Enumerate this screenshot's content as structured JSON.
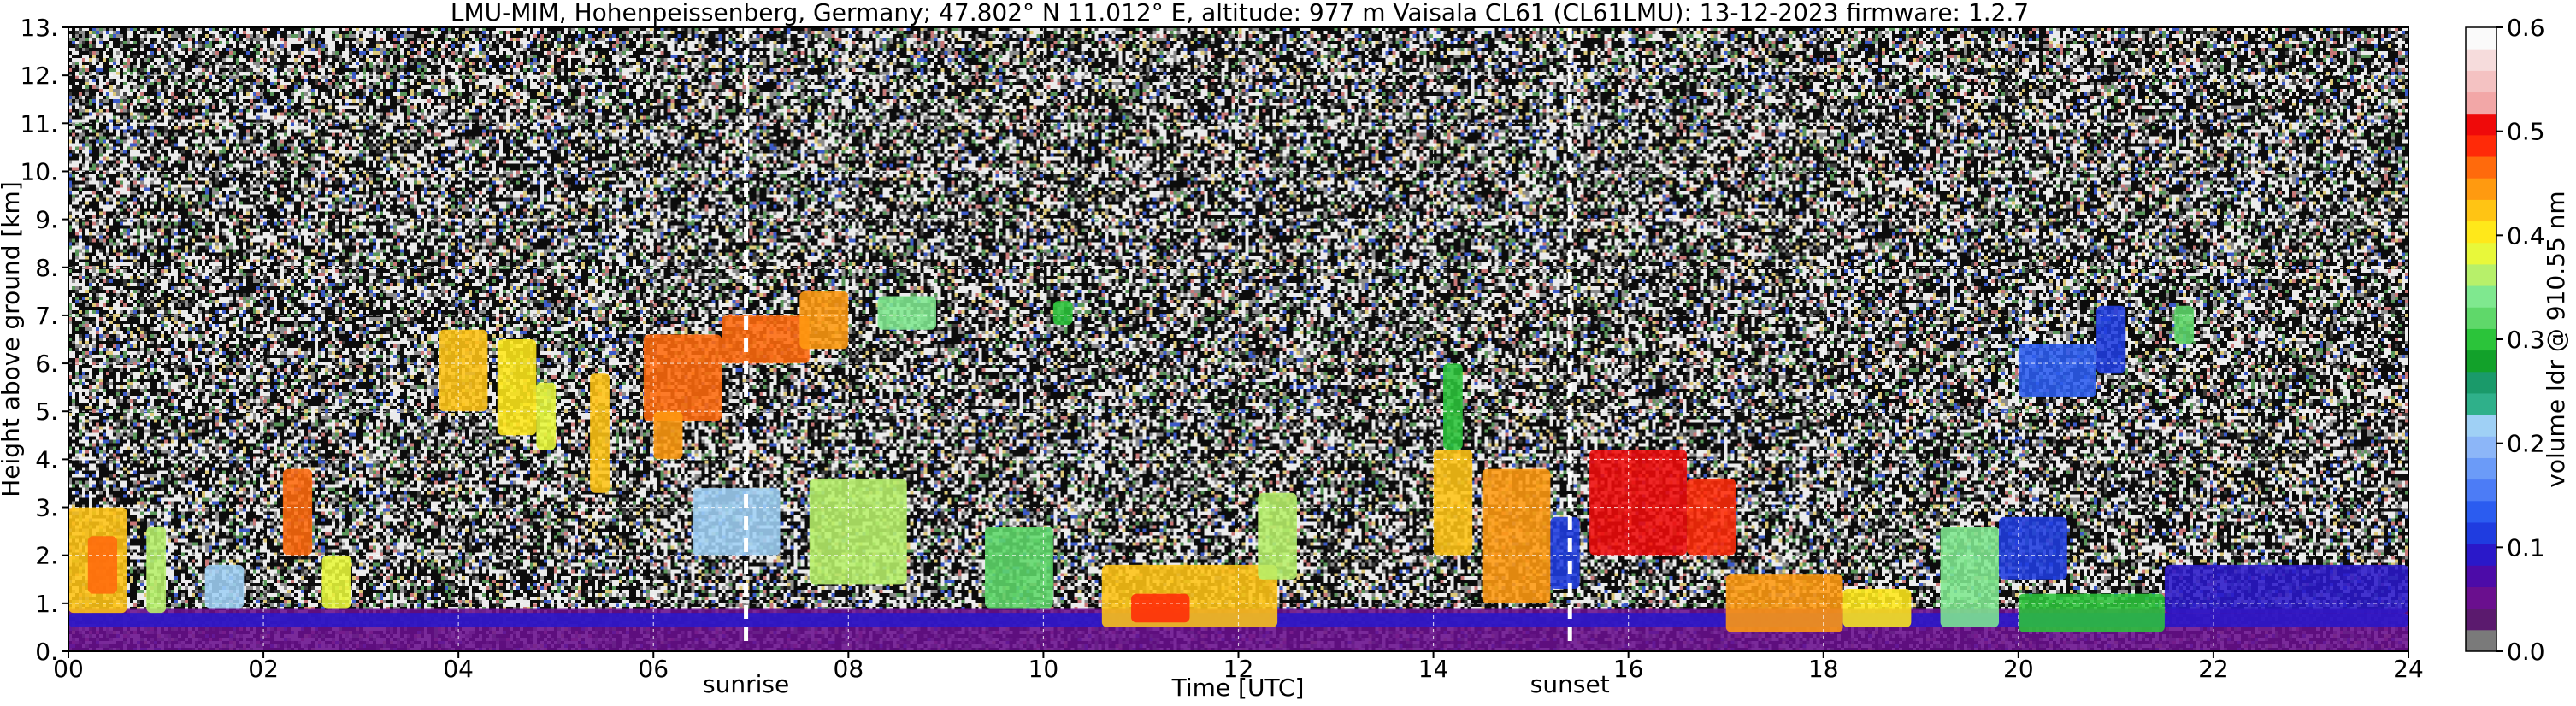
{
  "chart_data": {
    "type": "heatmap",
    "title": "LMU-MIM, Hohenpeissenberg, Germany; 47.802° N 11.012° E, altitude: 977 m    Vaisala CL61 (CL61LMU): 13-12-2023    firmware: 1.2.7",
    "xlabel": "Time [UTC]",
    "ylabel": "Height above ground [km]",
    "xlim": [
      0,
      24
    ],
    "ylim": [
      0,
      13
    ],
    "x_ticks": [
      "00",
      "02",
      "04",
      "06",
      "08",
      "10",
      "12",
      "14",
      "16",
      "18",
      "20",
      "22",
      "24"
    ],
    "y_ticks": [
      "0.",
      "1.",
      "2.",
      "3.",
      "4.",
      "5.",
      "6.",
      "7.",
      "8.",
      "9.",
      "10.",
      "11.",
      "12.",
      "13."
    ],
    "grid": true,
    "markers": [
      {
        "label": "sunrise",
        "x": 6.95
      },
      {
        "label": "sunset",
        "x": 15.4
      }
    ],
    "colorbar": {
      "label": "volume ldr @ 910.55 nm",
      "range": [
        0.0,
        0.6
      ],
      "ticks": [
        "0.0",
        "0.1",
        "0.2",
        "0.3",
        "0.4",
        "0.5",
        "0.6"
      ],
      "colors": [
        "#7a7a7a",
        "#5b1a6e",
        "#6a0f8e",
        "#4c0ba8",
        "#2a18c9",
        "#1f3ce0",
        "#2b5cf0",
        "#4c7cf6",
        "#6b9bf8",
        "#8cb6f8",
        "#9fd0f5",
        "#2fb08a",
        "#1a9a6a",
        "#12a12a",
        "#2bc43a",
        "#5fd86a",
        "#7fe88f",
        "#b7f06a",
        "#e8f83a",
        "#ffe81a",
        "#ffc414",
        "#ff9a10",
        "#ff6a0c",
        "#ff2a08",
        "#ef0a0a",
        "#f2a7a7",
        "#f4c2c2",
        "#f6dcdc",
        "#fafafa"
      ]
    },
    "regions": [
      {
        "x0": 0.0,
        "x1": 24.0,
        "y0": 0.0,
        "y1": 0.9,
        "v": 0.05
      },
      {
        "x0": 0.0,
        "x1": 24.0,
        "y0": 0.5,
        "y1": 0.8,
        "v": 0.1
      },
      {
        "x0": 0.0,
        "x1": 0.6,
        "y0": 0.8,
        "y1": 3.0,
        "v": 0.42
      },
      {
        "x0": 0.2,
        "x1": 0.5,
        "y0": 1.2,
        "y1": 2.4,
        "v": 0.47
      },
      {
        "x0": 0.8,
        "x1": 1.0,
        "y0": 0.8,
        "y1": 2.6,
        "v": 0.36
      },
      {
        "x0": 1.4,
        "x1": 1.8,
        "y0": 0.9,
        "y1": 1.8,
        "v": 0.22
      },
      {
        "x0": 2.2,
        "x1": 2.5,
        "y0": 2.0,
        "y1": 3.8,
        "v": 0.46
      },
      {
        "x0": 2.6,
        "x1": 2.9,
        "y0": 0.9,
        "y1": 2.0,
        "v": 0.38
      },
      {
        "x0": 3.8,
        "x1": 4.3,
        "y0": 5.0,
        "y1": 6.7,
        "v": 0.42
      },
      {
        "x0": 4.4,
        "x1": 4.8,
        "y0": 4.5,
        "y1": 6.5,
        "v": 0.4
      },
      {
        "x0": 4.8,
        "x1": 5.0,
        "y0": 4.2,
        "y1": 5.6,
        "v": 0.38
      },
      {
        "x0": 5.35,
        "x1": 5.55,
        "y0": 3.3,
        "y1": 5.8,
        "v": 0.42
      },
      {
        "x0": 5.9,
        "x1": 6.7,
        "y0": 4.8,
        "y1": 6.6,
        "v": 0.46
      },
      {
        "x0": 6.0,
        "x1": 6.3,
        "y0": 4.0,
        "y1": 5.0,
        "v": 0.44
      },
      {
        "x0": 6.7,
        "x1": 7.6,
        "y0": 6.0,
        "y1": 7.0,
        "v": 0.47
      },
      {
        "x0": 7.5,
        "x1": 8.0,
        "y0": 6.3,
        "y1": 7.5,
        "v": 0.44
      },
      {
        "x0": 8.3,
        "x1": 8.9,
        "y0": 6.7,
        "y1": 7.4,
        "v": 0.34
      },
      {
        "x0": 6.4,
        "x1": 7.3,
        "y0": 2.0,
        "y1": 3.4,
        "v": 0.22
      },
      {
        "x0": 7.6,
        "x1": 8.6,
        "y0": 1.4,
        "y1": 3.6,
        "v": 0.36
      },
      {
        "x0": 10.1,
        "x1": 10.3,
        "y0": 6.8,
        "y1": 7.3,
        "v": 0.3
      },
      {
        "x0": 9.4,
        "x1": 10.1,
        "y0": 0.9,
        "y1": 2.6,
        "v": 0.33
      },
      {
        "x0": 10.6,
        "x1": 12.4,
        "y0": 0.5,
        "y1": 1.8,
        "v": 0.43
      },
      {
        "x0": 10.9,
        "x1": 11.5,
        "y0": 0.6,
        "y1": 1.2,
        "v": 0.49
      },
      {
        "x0": 12.2,
        "x1": 12.6,
        "y0": 1.5,
        "y1": 3.3,
        "v": 0.36
      },
      {
        "x0": 14.0,
        "x1": 14.4,
        "y0": 2.0,
        "y1": 4.2,
        "v": 0.42
      },
      {
        "x0": 14.1,
        "x1": 14.3,
        "y0": 4.2,
        "y1": 6.0,
        "v": 0.3
      },
      {
        "x0": 14.5,
        "x1": 15.2,
        "y0": 1.0,
        "y1": 3.8,
        "v": 0.45
      },
      {
        "x0": 15.2,
        "x1": 15.5,
        "y0": 1.3,
        "y1": 2.8,
        "v": 0.12
      },
      {
        "x0": 15.6,
        "x1": 16.6,
        "y0": 2.0,
        "y1": 4.2,
        "v": 0.5
      },
      {
        "x0": 16.6,
        "x1": 17.1,
        "y0": 2.0,
        "y1": 3.6,
        "v": 0.48
      },
      {
        "x0": 17.0,
        "x1": 18.2,
        "y0": 0.4,
        "y1": 1.6,
        "v": 0.45
      },
      {
        "x0": 18.2,
        "x1": 18.9,
        "y0": 0.5,
        "y1": 1.3,
        "v": 0.4
      },
      {
        "x0": 19.2,
        "x1": 19.8,
        "y0": 0.5,
        "y1": 2.6,
        "v": 0.34
      },
      {
        "x0": 19.8,
        "x1": 20.5,
        "y0": 1.5,
        "y1": 2.8,
        "v": 0.12
      },
      {
        "x0": 20.0,
        "x1": 20.8,
        "y0": 5.3,
        "y1": 6.4,
        "v": 0.13
      },
      {
        "x0": 20.8,
        "x1": 21.1,
        "y0": 5.8,
        "y1": 7.2,
        "v": 0.12
      },
      {
        "x0": 21.6,
        "x1": 21.8,
        "y0": 6.4,
        "y1": 7.2,
        "v": 0.32
      },
      {
        "x0": 20.0,
        "x1": 21.5,
        "y0": 0.4,
        "y1": 1.2,
        "v": 0.3
      },
      {
        "x0": 21.5,
        "x1": 24.0,
        "y0": 0.8,
        "y1": 1.8,
        "v": 0.1
      }
    ]
  }
}
